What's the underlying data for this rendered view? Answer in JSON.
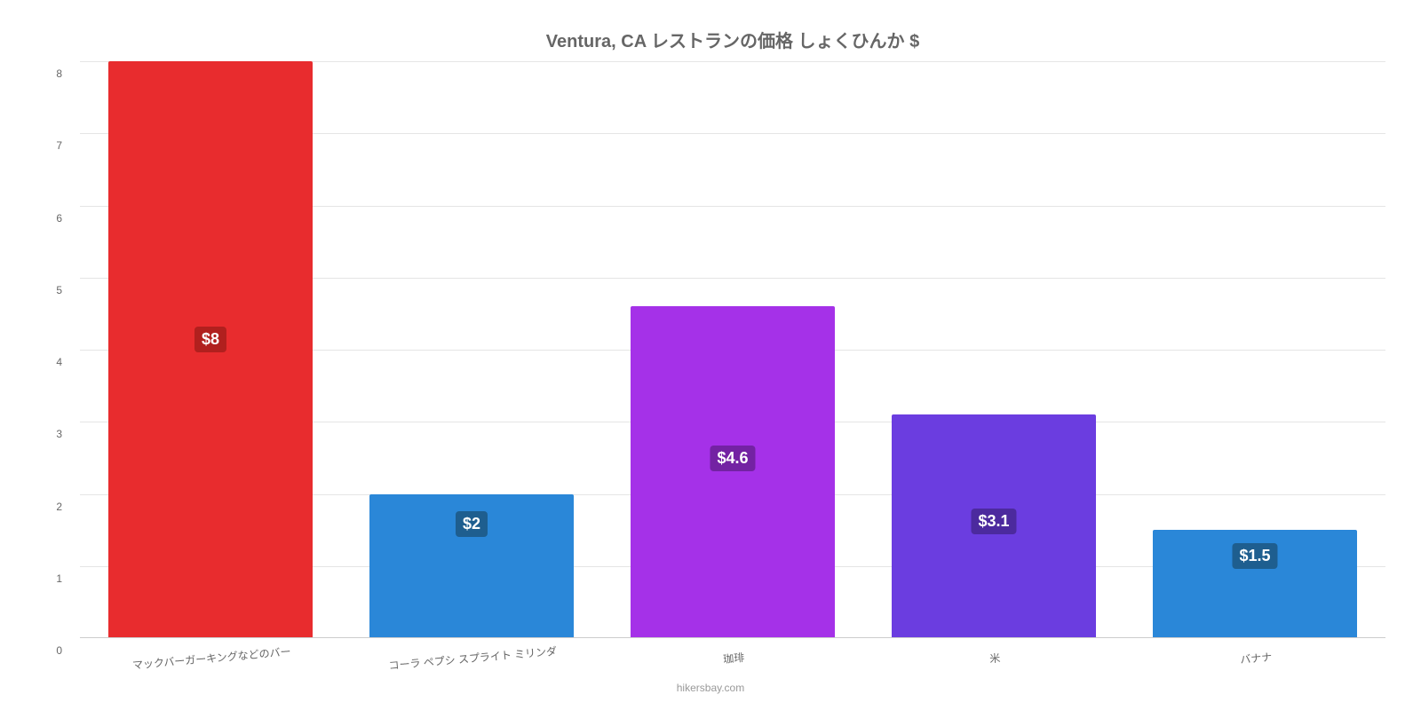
{
  "chart": {
    "type": "bar",
    "title": "Ventura, CA レストランの価格 しょくひんか $",
    "title_fontsize": 20,
    "title_color": "#666666",
    "background_color": "#ffffff",
    "grid_color": "#e5e5e5",
    "axis_line_color": "#cccccc",
    "ylim": [
      0,
      8
    ],
    "ytick_step": 1,
    "yticks": [
      "0",
      "1",
      "2",
      "3",
      "4",
      "5",
      "6",
      "7",
      "8"
    ],
    "tick_fontsize": 12,
    "tick_color": "#666666",
    "bar_width_pct": 78,
    "categories": [
      "マックバーガーキングなどのバー",
      "コーラ ペプシ スプライト ミリンダ",
      "珈琲",
      "米",
      "バナナ"
    ],
    "values": [
      8,
      2,
      4.6,
      3.1,
      1.5
    ],
    "value_labels": [
      "$8",
      "$2",
      "$4.6",
      "$3.1",
      "$1.5"
    ],
    "bar_colors": [
      "#e82c2e",
      "#2a87d8",
      "#a531e8",
      "#6b3de0",
      "#2a87d8"
    ],
    "label_bg_colors": [
      "#b1201e",
      "#1e5e8f",
      "#7322a3",
      "#4c2a9e",
      "#1e5e8f"
    ],
    "value_label_fontsize": 18,
    "value_label_color": "#ffffff",
    "xlabel_fontsize": 12,
    "xlabel_color": "#666666",
    "xlabel_rotation_deg": -5,
    "attribution": "hikersbay.com",
    "attribution_color": "#999999",
    "attribution_fontsize": 12
  }
}
